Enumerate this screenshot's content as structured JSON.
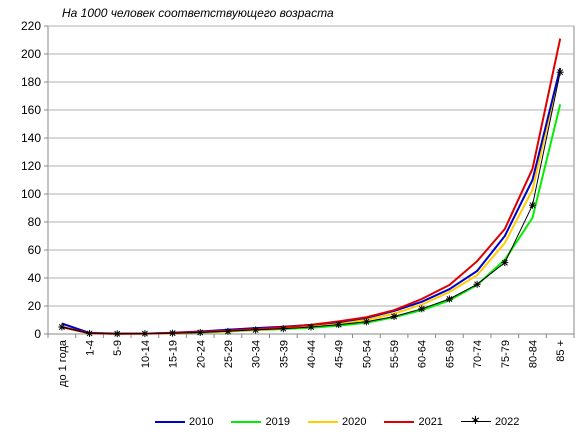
{
  "chart_data": {
    "type": "line",
    "title": "На 1000 человек соответствующего возраста",
    "categories": [
      "до 1 года",
      "1-4",
      "5-9",
      "10-14",
      "15-19",
      "20-24",
      "25-29",
      "30-34",
      "35-39",
      "40-44",
      "45-49",
      "50-54",
      "55-59",
      "60-64",
      "65-69",
      "70-74",
      "75-79",
      "80-84",
      "85 +"
    ],
    "ylim": [
      0,
      220
    ],
    "yticks": [
      0,
      20,
      40,
      60,
      80,
      100,
      120,
      140,
      160,
      180,
      200,
      220
    ],
    "grid": true,
    "legend_position": "bottom",
    "series": [
      {
        "name": "2010",
        "color": "#0000cc",
        "marker": "none",
        "values": [
          7.5,
          0.8,
          0.3,
          0.3,
          0.9,
          1.8,
          3,
          4.2,
          5.2,
          6.5,
          8.5,
          11.5,
          16.5,
          23,
          32,
          45,
          70,
          110,
          190
        ]
      },
      {
        "name": "2019",
        "color": "#00ee00",
        "marker": "none",
        "values": [
          5,
          0.5,
          0.2,
          0.3,
          0.6,
          1.1,
          1.8,
          2.8,
          3.6,
          4.5,
          6,
          8,
          12,
          17,
          24,
          35,
          53,
          83,
          164
        ]
      },
      {
        "name": "2020",
        "color": "#ffcc00",
        "marker": "none",
        "values": [
          5,
          0.5,
          0.2,
          0.3,
          0.6,
          1.2,
          2,
          3,
          3.9,
          5.5,
          7.5,
          10,
          14.5,
          21,
          30,
          42,
          65,
          103,
          189
        ]
      },
      {
        "name": "2021",
        "color": "#dd0000",
        "marker": "none",
        "values": [
          5,
          0.5,
          0.2,
          0.3,
          0.7,
          1.4,
          2.4,
          3.5,
          4.8,
          6.5,
          9,
          12,
          17,
          25,
          35,
          52,
          75,
          118,
          211
        ]
      },
      {
        "name": "2022",
        "color": "#000000",
        "marker": "star",
        "values": [
          5,
          0.4,
          0.2,
          0.3,
          0.6,
          1.1,
          1.9,
          2.9,
          3.8,
          5,
          6.7,
          8.7,
          12.5,
          18,
          25,
          35.5,
          51,
          92,
          187
        ]
      }
    ]
  }
}
